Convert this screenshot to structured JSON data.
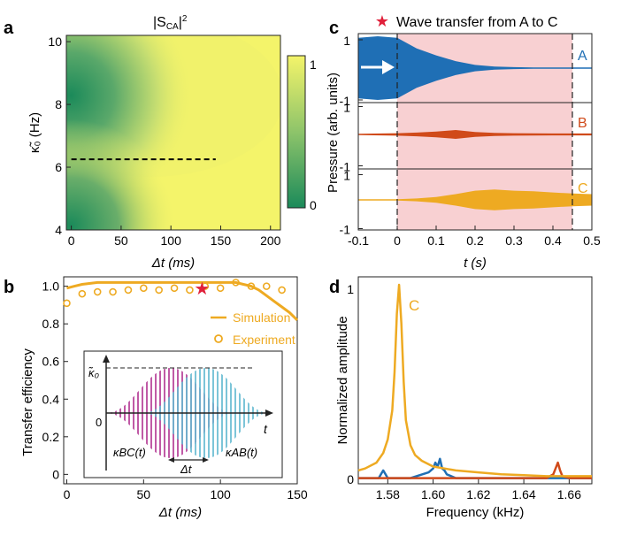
{
  "colors": {
    "green": "#1b8a5a",
    "yellow": "#f4f46a",
    "blue": "#1f6fb5",
    "red": "#d04a1a",
    "orange": "#eeaa22",
    "pink": "#f8d0d2",
    "magenta": "#b0308f",
    "cyan": "#5bb6cf",
    "star": "#e0203a"
  },
  "panels": {
    "a": {
      "letter": "a",
      "title": "|S_CA|²",
      "title_main": "|S",
      "title_sub": "CA",
      "title_tail": "|",
      "title_sup": "2",
      "ylabel": "κ̃₀ (Hz)",
      "xlabel": "Δt (ms)",
      "colorbar_ticks": [
        "1",
        "0"
      ]
    },
    "b": {
      "letter": "b",
      "ylabel": "Transfer efficiency",
      "xlabel": "Δt (ms)",
      "legend": {
        "simulation": "Simulation",
        "experiment": "Experiment"
      },
      "inset": {
        "k0_label": "κ̃₀",
        "origin": "0",
        "t_label": "t",
        "dt_label": "Δt",
        "kbc_label": "κBC(t)",
        "kab_label": "κAB(t)"
      }
    },
    "c": {
      "letter": "c",
      "legend_text": "Wave transfer from A to C",
      "ylabel": "Pressure (arb. units)",
      "xlabel": "t (s)",
      "traces": [
        "A",
        "B",
        "C"
      ],
      "y_ticks_top": [
        "1",
        "-1"
      ]
    },
    "d": {
      "letter": "d",
      "ylabel": "Normalized amplitude",
      "xlabel": "Frequency (kHz)",
      "curve_label": "C",
      "y_ticks": [
        "1",
        "0"
      ]
    }
  },
  "chart_data": [
    {
      "panel": "a",
      "type": "heatmap",
      "title": "|S_CA|²",
      "xlabel": "Δt (ms)",
      "ylabel": "κ̃₀ (Hz)",
      "xlim": [
        -5,
        210
      ],
      "ylim": [
        4,
        10.2
      ],
      "x_ticks": [
        0,
        50,
        100,
        150,
        200
      ],
      "y_ticks": [
        4,
        6,
        8,
        10
      ],
      "colorbar": {
        "range": [
          0,
          1
        ],
        "ticks": [
          0,
          1
        ],
        "low_color": "#1b8a5a",
        "high_color": "#f4f46a"
      },
      "dashed_line": {
        "y": 6.25,
        "x": [
          0,
          145
        ]
      }
    },
    {
      "panel": "b",
      "type": "scatter",
      "xlabel": "Δt (ms)",
      "ylabel": "Transfer efficiency",
      "xlim": [
        -2,
        150
      ],
      "ylim": [
        -0.05,
        1.05
      ],
      "x_ticks": [
        0,
        50,
        100,
        150
      ],
      "y_ticks": [
        0,
        0.2,
        0.4,
        0.6,
        0.8,
        1.0
      ],
      "y_tick_labels": [
        "0",
        "0.2",
        "0.4",
        "0.6",
        "0.8",
        "1.0"
      ],
      "series": [
        {
          "name": "Simulation",
          "style": "line",
          "x": [
            0,
            5,
            10,
            20,
            30,
            40,
            50,
            60,
            70,
            80,
            90,
            100,
            110,
            115,
            120,
            125,
            130,
            135,
            140,
            145,
            150
          ],
          "values": [
            0.99,
            1.0,
            1.01,
            1.02,
            1.02,
            1.02,
            1.02,
            1.02,
            1.02,
            1.02,
            1.02,
            1.02,
            1.02,
            1.01,
            1.0,
            0.98,
            0.95,
            0.92,
            0.89,
            0.86,
            0.82
          ]
        },
        {
          "name": "Experiment",
          "style": "markers",
          "x": [
            0,
            10,
            20,
            30,
            40,
            50,
            60,
            70,
            80,
            90,
            100,
            110,
            120,
            130,
            140
          ],
          "values": [
            0.91,
            0.96,
            0.97,
            0.97,
            0.98,
            0.99,
            0.98,
            0.99,
            0.98,
            1.0,
            0.99,
            1.02,
            1.0,
            1.0,
            0.98
          ]
        }
      ],
      "star": {
        "x": 88,
        "y": 0.99
      }
    },
    {
      "panel": "c",
      "type": "area",
      "xlabel": "t (s)",
      "ylabel": "Pressure (arb. units)",
      "xlim": [
        -0.1,
        0.5
      ],
      "x_ticks": [
        -0.1,
        0,
        0.1,
        0.2,
        0.3,
        0.4,
        0.5
      ],
      "x_tick_labels": [
        "-0.1",
        "0",
        "0.1",
        "0.2",
        "0.3",
        "0.4",
        "0.5"
      ],
      "shaded_interval": [
        0,
        0.45
      ],
      "dashed_lines": [
        0,
        0.45
      ],
      "traces": [
        {
          "name": "A",
          "t": [
            -0.1,
            -0.05,
            0,
            0.05,
            0.1,
            0.15,
            0.2,
            0.25,
            0.3,
            0.35,
            0.4,
            0.5
          ],
          "envelope": [
            0.95,
            1.0,
            0.95,
            0.62,
            0.4,
            0.22,
            0.1,
            0.05,
            0.03,
            0.02,
            0.02,
            0.02
          ]
        },
        {
          "name": "B",
          "t": [
            -0.1,
            0,
            0.05,
            0.1,
            0.15,
            0.2,
            0.25,
            0.3,
            0.4,
            0.5
          ],
          "envelope": [
            0.02,
            0.04,
            0.06,
            0.09,
            0.14,
            0.08,
            0.05,
            0.04,
            0.03,
            0.03
          ]
        },
        {
          "name": "C",
          "t": [
            -0.1,
            0,
            0.05,
            0.1,
            0.15,
            0.2,
            0.25,
            0.3,
            0.35,
            0.4,
            0.45,
            0.5
          ],
          "envelope": [
            0.02,
            0.02,
            0.05,
            0.1,
            0.2,
            0.32,
            0.36,
            0.32,
            0.3,
            0.26,
            0.22,
            0.2
          ]
        }
      ]
    },
    {
      "panel": "d",
      "type": "line",
      "xlabel": "Frequency (kHz)",
      "ylabel": "Normalized amplitude",
      "xlim": [
        1.567,
        1.67
      ],
      "ylim": [
        0,
        1
      ],
      "x_ticks": [
        1.58,
        1.6,
        1.62,
        1.64,
        1.66
      ],
      "y_ticks": [
        0,
        1
      ],
      "series": [
        {
          "name": "C",
          "x": [
            1.567,
            1.57,
            1.575,
            1.578,
            1.58,
            1.582,
            1.583,
            1.584,
            1.585,
            1.586,
            1.587,
            1.588,
            1.59,
            1.592,
            1.595,
            1.6,
            1.605,
            1.61,
            1.62,
            1.63,
            1.64,
            1.65,
            1.66,
            1.67
          ],
          "values": [
            0.04,
            0.05,
            0.08,
            0.13,
            0.2,
            0.35,
            0.55,
            0.85,
            1.0,
            0.8,
            0.5,
            0.3,
            0.17,
            0.12,
            0.09,
            0.06,
            0.05,
            0.04,
            0.03,
            0.02,
            0.015,
            0.01,
            0.01,
            0.01
          ]
        },
        {
          "name": "blue",
          "x": [
            1.567,
            1.576,
            1.577,
            1.578,
            1.579,
            1.58,
            1.59,
            1.598,
            1.6,
            1.601,
            1.602,
            1.603,
            1.604,
            1.605,
            1.606,
            1.608,
            1.61,
            1.62,
            1.67
          ],
          "values": [
            0.0,
            0.0,
            0.02,
            0.04,
            0.02,
            0.0,
            0.0,
            0.03,
            0.05,
            0.08,
            0.06,
            0.1,
            0.05,
            0.04,
            0.02,
            0.01,
            0.0,
            0.0,
            0.0
          ]
        },
        {
          "name": "red",
          "x": [
            1.567,
            1.65,
            1.653,
            1.654,
            1.655,
            1.656,
            1.657,
            1.66,
            1.67
          ],
          "values": [
            0.0,
            0.0,
            0.02,
            0.05,
            0.08,
            0.04,
            0.01,
            0.0,
            0.0
          ]
        }
      ]
    }
  ]
}
